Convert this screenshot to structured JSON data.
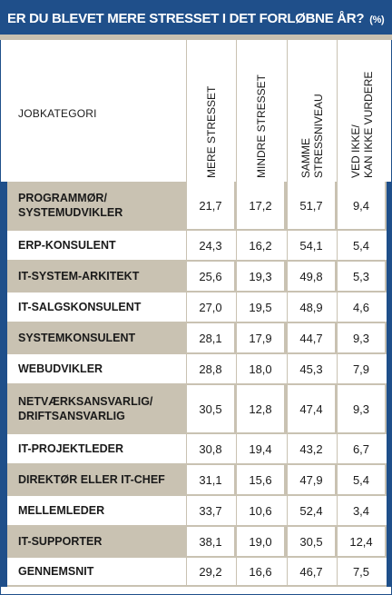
{
  "title": "ER DU BLEVET MERE STRESSET I DET FORLØBNE ÅR?",
  "unit": "(%)",
  "chart_data": {
    "type": "table",
    "title": "ER DU BLEVET MERE STRESSET I DET FORLØBNE ÅR?",
    "unit": "(%)",
    "row_header": "JOBKATEGORI",
    "columns": [
      "MERE STRESSET",
      "MINDRE STRESSET",
      "SAMME STRESSNIVEAU",
      "VED IKKE/ KAN IKKE VURDERE"
    ],
    "rows": [
      {
        "category": "PROGRAMMØR/ SYSTEMUDVIKLER",
        "values": [
          "21,7",
          "17,2",
          "51,7",
          "9,4"
        ]
      },
      {
        "category": "ERP-KONSULENT",
        "values": [
          "24,3",
          "16,2",
          "54,1",
          "5,4"
        ]
      },
      {
        "category": "IT-SYSTEM-ARKITEKT",
        "values": [
          "25,6",
          "19,3",
          "49,8",
          "5,3"
        ]
      },
      {
        "category": "IT-SALGSKONSULENT",
        "values": [
          "27,0",
          "19,5",
          "48,9",
          "4,6"
        ]
      },
      {
        "category": "SYSTEMKONSULENT",
        "values": [
          "28,1",
          "17,9",
          "44,7",
          "9,3"
        ]
      },
      {
        "category": "WEBUDVIKLER",
        "values": [
          "28,8",
          "18,0",
          "45,3",
          "7,9"
        ]
      },
      {
        "category": "NETVÆRKSANSVARLIG/ DRIFTSANSVARLIG",
        "values": [
          "30,5",
          "12,8",
          "47,4",
          "9,3"
        ]
      },
      {
        "category": "IT-PROJEKTLEDER",
        "values": [
          "30,8",
          "19,4",
          "43,2",
          "6,7"
        ]
      },
      {
        "category": "DIREKTØR ELLER IT-CHEF",
        "values": [
          "31,1",
          "15,6",
          "47,9",
          "5,4"
        ]
      },
      {
        "category": "MELLEMLEDER",
        "values": [
          "33,7",
          "10,6",
          "52,4",
          "3,4"
        ]
      },
      {
        "category": "IT-SUPPORTER",
        "values": [
          "38,1",
          "19,0",
          "30,5",
          "12,4"
        ]
      },
      {
        "category": "GENNEMSNIT",
        "values": [
          "29,2",
          "16,6",
          "46,7",
          "7,5"
        ]
      }
    ]
  },
  "colors": {
    "header_blue": "#1f4f8a",
    "shade": "#c9c2b2",
    "text": "#1a1a1a"
  }
}
